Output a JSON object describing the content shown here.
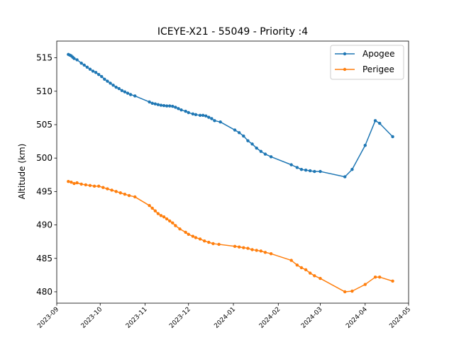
{
  "chart_data": {
    "type": "line",
    "title": "ICEYE-X21 - 55049 - Priority :4",
    "xlabel": "",
    "ylabel": "Altitude (km)",
    "xlim": [
      "2023-09-01",
      "2024-05-01"
    ],
    "ylim": [
      478.3,
      517.5
    ],
    "x_ticks": [
      "2023-09",
      "2023-10",
      "2023-11",
      "2023-12",
      "2024-01",
      "2024-02",
      "2024-03",
      "2024-04",
      "2024-05"
    ],
    "y_ticks": [
      480,
      485,
      490,
      495,
      500,
      505,
      510,
      515
    ],
    "legend_position": "top-right",
    "grid": false,
    "series": [
      {
        "name": "Apogee",
        "color": "#1f77b4",
        "points": [
          [
            "2023-09-09",
            515.5
          ],
          [
            "2023-09-10",
            515.4
          ],
          [
            "2023-09-11",
            515.3
          ],
          [
            "2023-09-12",
            515.1
          ],
          [
            "2023-09-13",
            514.9
          ],
          [
            "2023-09-15",
            514.7
          ],
          [
            "2023-09-18",
            514.2
          ],
          [
            "2023-09-20",
            513.9
          ],
          [
            "2023-09-22",
            513.6
          ],
          [
            "2023-09-24",
            513.3
          ],
          [
            "2023-09-26",
            513.0
          ],
          [
            "2023-09-28",
            512.8
          ],
          [
            "2023-09-30",
            512.5
          ],
          [
            "2023-10-02",
            512.2
          ],
          [
            "2023-10-04",
            511.8
          ],
          [
            "2023-10-06",
            511.5
          ],
          [
            "2023-10-08",
            511.2
          ],
          [
            "2023-10-10",
            510.9
          ],
          [
            "2023-10-12",
            510.6
          ],
          [
            "2023-10-14",
            510.4
          ],
          [
            "2023-10-16",
            510.1
          ],
          [
            "2023-10-18",
            509.9
          ],
          [
            "2023-10-20",
            509.7
          ],
          [
            "2023-10-22",
            509.5
          ],
          [
            "2023-10-25",
            509.3
          ],
          [
            "2023-11-04",
            508.4
          ],
          [
            "2023-11-06",
            508.2
          ],
          [
            "2023-11-08",
            508.1
          ],
          [
            "2023-11-10",
            508.0
          ],
          [
            "2023-11-12",
            507.9
          ],
          [
            "2023-11-14",
            507.85
          ],
          [
            "2023-11-16",
            507.8
          ],
          [
            "2023-11-18",
            507.8
          ],
          [
            "2023-11-20",
            507.75
          ],
          [
            "2023-11-22",
            507.6
          ],
          [
            "2023-11-24",
            507.4
          ],
          [
            "2023-11-26",
            507.2
          ],
          [
            "2023-11-29",
            507.0
          ],
          [
            "2023-12-01",
            506.8
          ],
          [
            "2023-12-04",
            506.6
          ],
          [
            "2023-12-06",
            506.5
          ],
          [
            "2023-12-09",
            506.4
          ],
          [
            "2023-12-11",
            506.4
          ],
          [
            "2023-12-13",
            506.3
          ],
          [
            "2023-12-15",
            506.1
          ],
          [
            "2023-12-17",
            505.9
          ],
          [
            "2023-12-19",
            505.6
          ],
          [
            "2023-12-23",
            505.4
          ],
          [
            "2024-01-02",
            504.2
          ],
          [
            "2024-01-05",
            503.8
          ],
          [
            "2024-01-08",
            503.3
          ],
          [
            "2024-01-11",
            502.6
          ],
          [
            "2024-01-14",
            502.1
          ],
          [
            "2024-01-17",
            501.5
          ],
          [
            "2024-01-20",
            501.0
          ],
          [
            "2024-01-23",
            500.6
          ],
          [
            "2024-01-27",
            500.2
          ],
          [
            "2024-02-10",
            499.0
          ],
          [
            "2024-02-14",
            498.6
          ],
          [
            "2024-02-17",
            498.3
          ],
          [
            "2024-02-20",
            498.2
          ],
          [
            "2024-02-23",
            498.1
          ],
          [
            "2024-02-26",
            498.0
          ],
          [
            "2024-03-01",
            498.0
          ],
          [
            "2024-03-18",
            497.2
          ],
          [
            "2024-03-23",
            498.3
          ],
          [
            "2024-04-01",
            501.9
          ],
          [
            "2024-04-08",
            505.6
          ],
          [
            "2024-04-11",
            505.2
          ],
          [
            "2024-04-20",
            503.2
          ]
        ]
      },
      {
        "name": "Perigee",
        "color": "#ff7f0e",
        "points": [
          [
            "2023-09-09",
            496.5
          ],
          [
            "2023-09-11",
            496.4
          ],
          [
            "2023-09-13",
            496.2
          ],
          [
            "2023-09-15",
            496.3
          ],
          [
            "2023-09-18",
            496.1
          ],
          [
            "2023-09-21",
            496.0
          ],
          [
            "2023-09-24",
            495.9
          ],
          [
            "2023-09-27",
            495.8
          ],
          [
            "2023-09-30",
            495.8
          ],
          [
            "2023-10-03",
            495.6
          ],
          [
            "2023-10-06",
            495.4
          ],
          [
            "2023-10-09",
            495.2
          ],
          [
            "2023-10-12",
            495.0
          ],
          [
            "2023-10-15",
            494.8
          ],
          [
            "2023-10-18",
            494.6
          ],
          [
            "2023-10-21",
            494.4
          ],
          [
            "2023-10-25",
            494.2
          ],
          [
            "2023-11-04",
            492.9
          ],
          [
            "2023-11-06",
            492.5
          ],
          [
            "2023-11-08",
            492.1
          ],
          [
            "2023-11-10",
            491.7
          ],
          [
            "2023-11-12",
            491.4
          ],
          [
            "2023-11-14",
            491.2
          ],
          [
            "2023-11-16",
            490.9
          ],
          [
            "2023-11-18",
            490.6
          ],
          [
            "2023-11-20",
            490.3
          ],
          [
            "2023-11-22",
            489.9
          ],
          [
            "2023-11-25",
            489.4
          ],
          [
            "2023-11-29",
            488.9
          ],
          [
            "2023-12-01",
            488.6
          ],
          [
            "2023-12-04",
            488.3
          ],
          [
            "2023-12-06",
            488.1
          ],
          [
            "2023-12-09",
            487.9
          ],
          [
            "2023-12-12",
            487.6
          ],
          [
            "2023-12-15",
            487.4
          ],
          [
            "2023-12-18",
            487.2
          ],
          [
            "2023-12-22",
            487.1
          ],
          [
            "2024-01-02",
            486.8
          ],
          [
            "2024-01-05",
            486.7
          ],
          [
            "2024-01-08",
            486.6
          ],
          [
            "2024-01-11",
            486.5
          ],
          [
            "2024-01-14",
            486.3
          ],
          [
            "2024-01-17",
            486.2
          ],
          [
            "2024-01-20",
            486.1
          ],
          [
            "2024-01-23",
            485.9
          ],
          [
            "2024-01-27",
            485.7
          ],
          [
            "2024-02-10",
            484.7
          ],
          [
            "2024-02-14",
            484.0
          ],
          [
            "2024-02-17",
            483.6
          ],
          [
            "2024-02-20",
            483.3
          ],
          [
            "2024-02-23",
            482.8
          ],
          [
            "2024-02-26",
            482.4
          ],
          [
            "2024-03-01",
            482.0
          ],
          [
            "2024-03-18",
            480.0
          ],
          [
            "2024-03-23",
            480.1
          ],
          [
            "2024-04-01",
            481.1
          ],
          [
            "2024-04-08",
            482.2
          ],
          [
            "2024-04-11",
            482.2
          ],
          [
            "2024-04-20",
            481.6
          ]
        ]
      }
    ]
  }
}
